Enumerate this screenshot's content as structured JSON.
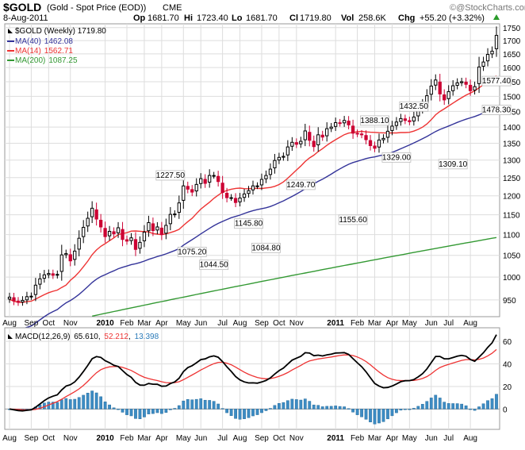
{
  "header": {
    "symbol": "$GOLD",
    "description": "(Gold - Spot Price (EOD))",
    "exchange": "CME",
    "date": "8-Aug-2011",
    "quote": {
      "op_label": "Op",
      "op": "1681.70",
      "hi_label": "Hi",
      "hi": "1723.40",
      "lo_label": "Lo",
      "lo": "1681.70",
      "cl_label": "Cl",
      "cl": "1719.80",
      "vol_label": "Vol",
      "vol": "258.6K",
      "chg_label": "Chg",
      "chg": "+55.20 (+3.32%)"
    },
    "brand": "@StockCharts.com",
    "brand_icon": "copyright-icon",
    "chg_icon": "up-triangle-icon"
  },
  "colors": {
    "up": "#000000",
    "down": "#cc0033",
    "ma40": "#333399",
    "ma14": "#ee3333",
    "ma200": "#339933",
    "macd": "#000000",
    "signal": "#ee3333",
    "histogram": "#3d8cc4",
    "histogram_value": "#2a7ab8",
    "grid": "#dddddd"
  },
  "chart_data": [
    {
      "type": "candlestick",
      "name": "price",
      "frequency": "weekly",
      "legend": [
        {
          "key": "price",
          "label": "$GOLD (Weekly) 1719.80"
        },
        {
          "key": "ma40",
          "label": "MA(40)",
          "value": "1462.08"
        },
        {
          "key": "ma14",
          "label": "MA(14)",
          "value": "1562.71"
        },
        {
          "key": "ma200",
          "label": "MA(200)",
          "value": "1087.25"
        }
      ],
      "y_range": [
        915,
        1765
      ],
      "y_ticks": [
        950,
        1000,
        1050,
        1100,
        1150,
        1200,
        1250,
        1300,
        1350,
        1400,
        1450,
        1500,
        1550,
        1600,
        1650,
        1700,
        1750
      ],
      "y_scale": "log",
      "x_labels": [
        {
          "i": 0,
          "text": "Aug"
        },
        {
          "i": 5,
          "text": "Sep"
        },
        {
          "i": 9,
          "text": "Oct"
        },
        {
          "i": 14,
          "text": "Nov"
        },
        {
          "i": 22,
          "text": "2010",
          "bold": true
        },
        {
          "i": 27,
          "text": "Feb"
        },
        {
          "i": 31,
          "text": "Mar"
        },
        {
          "i": 35,
          "text": "Apr"
        },
        {
          "i": 40,
          "text": "May"
        },
        {
          "i": 44,
          "text": "Jun"
        },
        {
          "i": 49,
          "text": "Jul"
        },
        {
          "i": 53,
          "text": "Aug"
        },
        {
          "i": 58,
          "text": "Sep"
        },
        {
          "i": 62,
          "text": "Oct"
        },
        {
          "i": 66,
          "text": "Nov"
        },
        {
          "i": 75,
          "text": "2011",
          "bold": true
        },
        {
          "i": 80,
          "text": "Feb"
        },
        {
          "i": 84,
          "text": "Mar"
        },
        {
          "i": 88,
          "text": "Apr"
        },
        {
          "i": 92,
          "text": "May"
        },
        {
          "i": 97,
          "text": "Jun"
        },
        {
          "i": 101,
          "text": "Jul"
        },
        {
          "i": 106,
          "text": "Aug"
        }
      ],
      "closes": [
        956,
        948,
        945,
        949,
        957,
        958,
        982,
        996,
        1005,
        1008,
        1004,
        1006,
        1051,
        1054,
        1037,
        1060,
        1091,
        1118,
        1141,
        1167,
        1139,
        1119,
        1095,
        1108,
        1102,
        1117,
        1088,
        1084,
        1092,
        1064,
        1081,
        1106,
        1130,
        1110,
        1119,
        1100,
        1123,
        1151,
        1152,
        1181,
        1227,
        1218,
        1210,
        1231,
        1247,
        1234,
        1256,
        1256,
        1239,
        1209,
        1195,
        1195,
        1182,
        1194,
        1205,
        1214,
        1227,
        1227,
        1245,
        1256,
        1274,
        1299,
        1308,
        1311,
        1339,
        1353,
        1347,
        1356,
        1388,
        1359,
        1340,
        1376,
        1369,
        1395,
        1400,
        1414,
        1412,
        1421,
        1407,
        1381,
        1379,
        1376,
        1361,
        1343,
        1335,
        1360,
        1365,
        1387,
        1403,
        1416,
        1427,
        1421,
        1417,
        1432,
        1456,
        1473,
        1502,
        1535,
        1556,
        1508,
        1488,
        1516,
        1536,
        1546,
        1550,
        1541,
        1519,
        1533,
        1602,
        1620,
        1648,
        1660,
        1719.8
      ],
      "labels": [
        {
          "i": 37,
          "value": "1227.50"
        },
        {
          "i": 42,
          "value": "1075.20"
        },
        {
          "i": 47,
          "value": "1044.50"
        },
        {
          "i": 55,
          "value": "1145.80"
        },
        {
          "i": 59,
          "value": "1084.80"
        },
        {
          "i": 67,
          "value": "1249.70"
        },
        {
          "i": 79,
          "value": "1155.60"
        },
        {
          "i": 84,
          "value": "1388.10"
        },
        {
          "i": 89,
          "value": "1329.00"
        },
        {
          "i": 93,
          "value": "1432.50"
        },
        {
          "i": 102,
          "value": "1309.10"
        },
        {
          "i": 112,
          "value": "1577.40"
        },
        {
          "i": 117,
          "value": "1478.30"
        }
      ]
    },
    {
      "type": "macd",
      "name": "macd",
      "legend": {
        "label": "MACD(12,26,9)",
        "macd_value": "65.610",
        "signal_value": "52.212",
        "histogram_value": "13.398"
      },
      "y_range": [
        -18,
        72
      ],
      "y_ticks": [
        0,
        20,
        40,
        60
      ]
    }
  ]
}
